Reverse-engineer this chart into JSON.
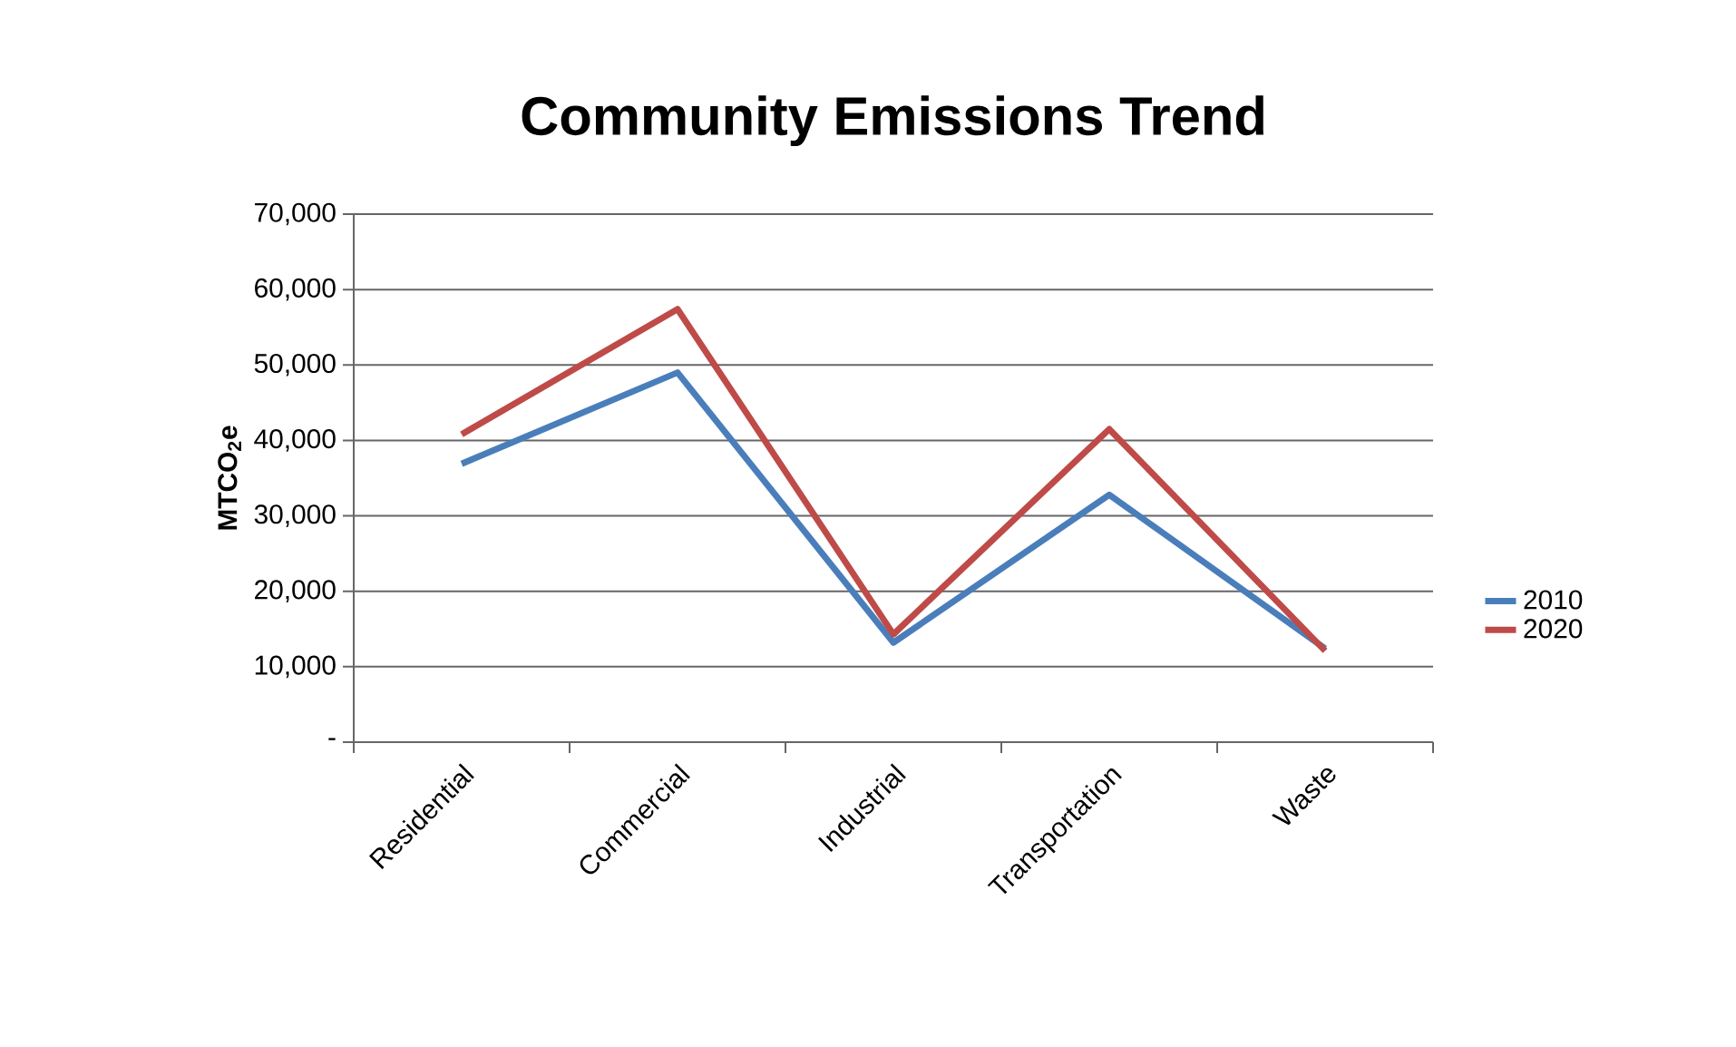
{
  "chart_data": {
    "type": "line",
    "title": "Community Emissions Trend",
    "ylabel": "MTCO$_{2}$e",
    "categories": [
      "Residential",
      "Commercial",
      "Industrial",
      "Transportation",
      "Waste"
    ],
    "series": [
      {
        "name": "2010",
        "color": "#4a7ebb",
        "values": [
          36900,
          49000,
          13200,
          32800,
          12400
        ]
      },
      {
        "name": "2020",
        "color": "#be4b48",
        "values": [
          40800,
          57400,
          14300,
          41500,
          12100
        ]
      }
    ],
    "ylim": [
      0,
      70000
    ],
    "yticks": [
      {
        "value": 0,
        "label": "-"
      },
      {
        "value": 10000,
        "label": "10,000"
      },
      {
        "value": 20000,
        "label": "20,000"
      },
      {
        "value": 30000,
        "label": "30,000"
      },
      {
        "value": 40000,
        "label": "40,000"
      },
      {
        "value": 50000,
        "label": "50,000"
      },
      {
        "value": 60000,
        "label": "60,000"
      },
      {
        "value": 70000,
        "label": "70,000"
      }
    ],
    "grid": "y",
    "legend": "right",
    "marker": "none",
    "line_style": "solid"
  }
}
